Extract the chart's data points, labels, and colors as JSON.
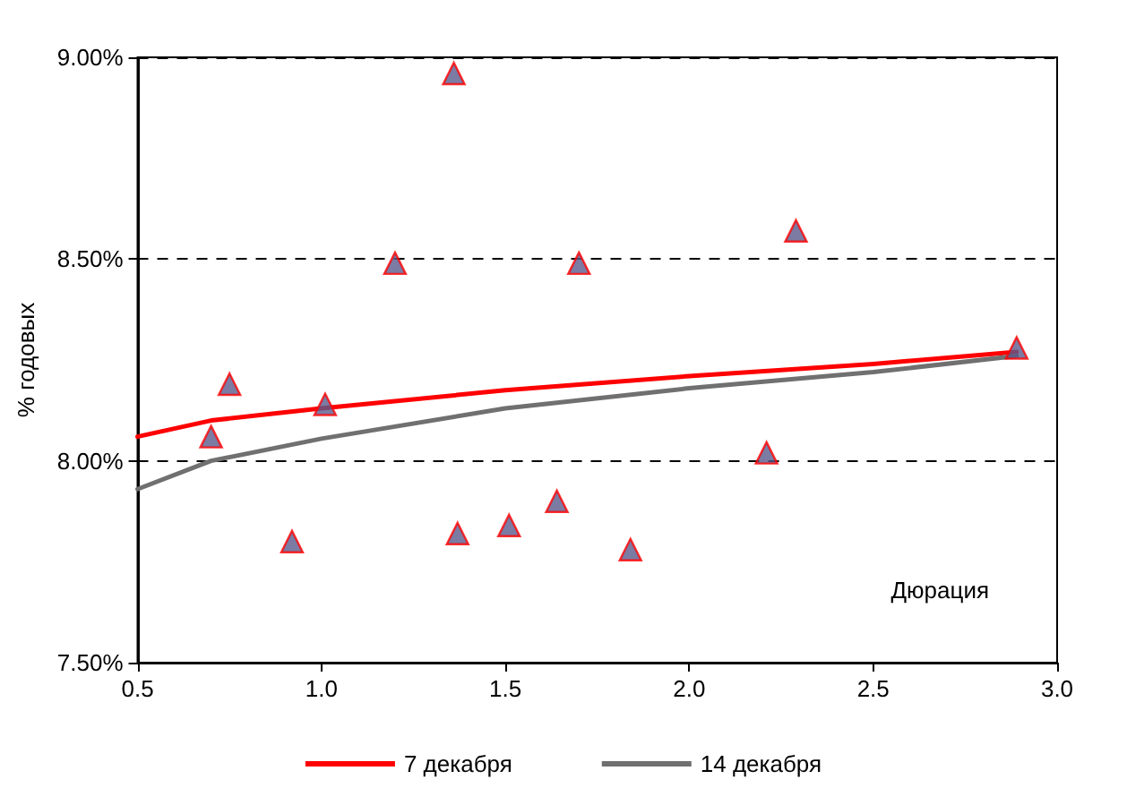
{
  "chart_data": {
    "type": "scatter",
    "xlabel": "Дюрация",
    "ylabel": "% годовых",
    "series": [
      {
        "type": "line",
        "name": "7 декабря",
        "color": "#ff0000",
        "x": [
          0.5,
          0.7,
          1.0,
          1.5,
          2.0,
          2.5,
          2.89
        ],
        "values": [
          8.06,
          8.1,
          8.13,
          8.175,
          8.21,
          8.24,
          8.27
        ],
        "marker": "none",
        "line_style": "solid"
      },
      {
        "type": "line",
        "name": "14 декабря",
        "color": "#707070",
        "x": [
          0.5,
          0.7,
          1.0,
          1.5,
          2.0,
          2.5,
          2.89
        ],
        "values": [
          7.93,
          8.0,
          8.055,
          8.13,
          8.18,
          8.22,
          8.26
        ],
        "marker": "none",
        "line_style": "solid"
      },
      {
        "color": "#5a5a8c",
        "marker": "triangle",
        "x": [
          0.7,
          0.75,
          0.92,
          1.01,
          1.2,
          1.36,
          1.37,
          1.51,
          1.64,
          1.7,
          1.84,
          2.21,
          2.29,
          2.89
        ],
        "values": [
          8.06,
          8.19,
          7.8,
          8.14,
          8.49,
          8.96,
          7.82,
          7.84,
          7.9,
          8.49,
          7.78,
          8.02,
          8.57,
          8.28
        ]
      }
    ],
    "xlim": [
      0.5,
      3.0
    ],
    "xticks": [
      {
        "value": 0.5,
        "label": "0.5"
      },
      {
        "value": 1,
        "label": "1.0"
      },
      {
        "value": 1.5,
        "label": "1.5"
      },
      {
        "value": 2,
        "label": "2.0"
      },
      {
        "value": 2.5,
        "label": "2.5"
      },
      {
        "value": 3,
        "label": "3.0"
      }
    ],
    "ylim": [
      7.5,
      9.0
    ],
    "yticks": [
      {
        "value": 7.5,
        "label": "7.50%"
      },
      {
        "value": 8,
        "label": "8.00%"
      },
      {
        "value": 8.5,
        "label": "8.50%"
      },
      {
        "value": 9,
        "label": "9.00%"
      }
    ],
    "grid": "y",
    "legend": "bottom"
  }
}
